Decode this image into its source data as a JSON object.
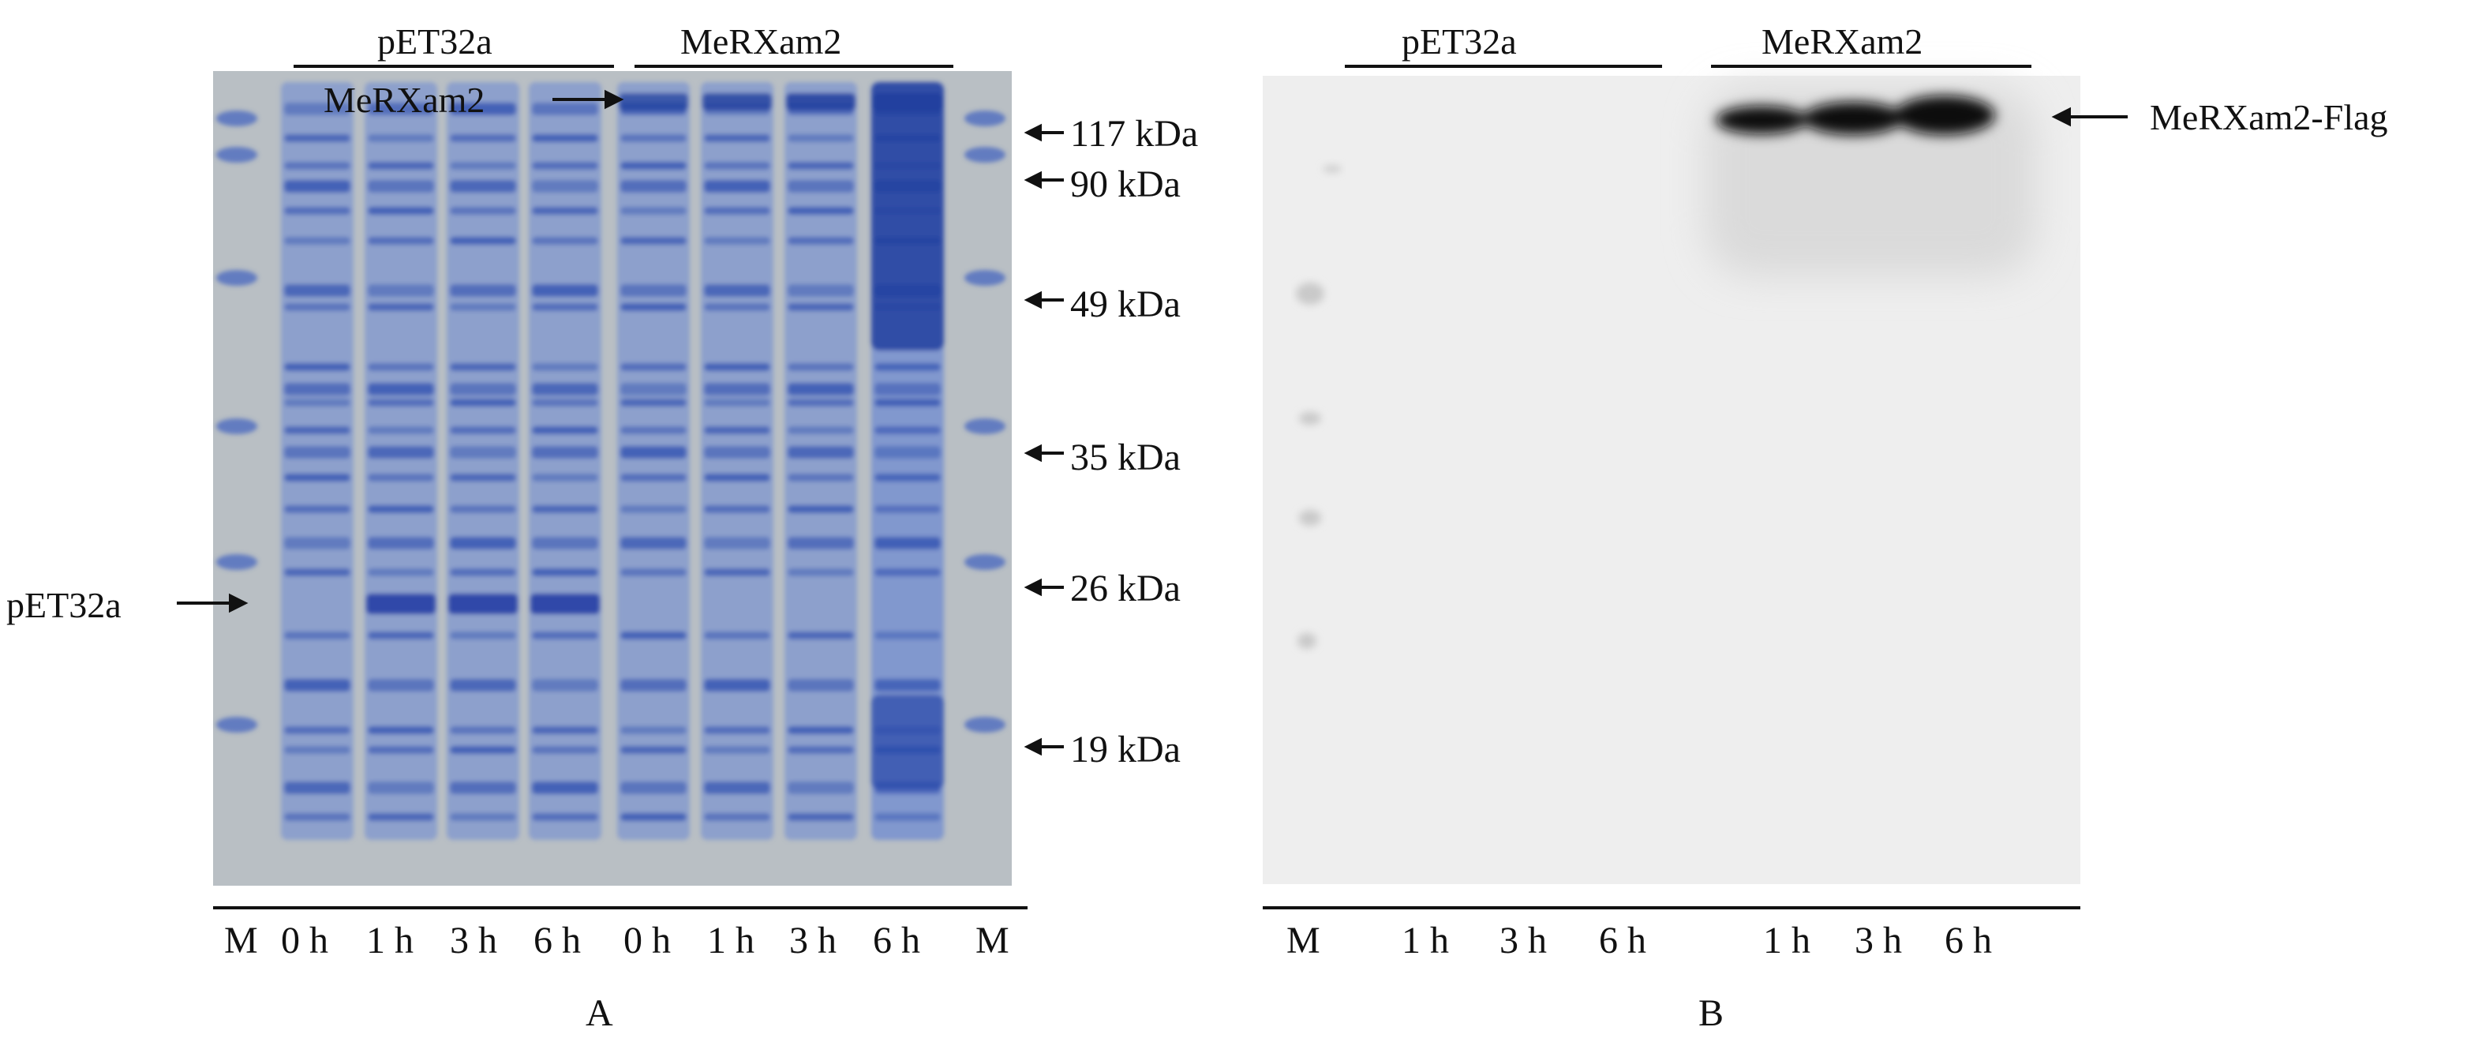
{
  "panel_a": {
    "label": "A",
    "group_labels": [
      "pET32a",
      "MeRXam2"
    ],
    "lane_labels": [
      "M",
      "0 h",
      "1 h",
      "3 h",
      "6 h",
      "0 h",
      "1 h",
      "3 h",
      "6 h",
      "M"
    ],
    "marker_labels": [
      "117 kDa",
      "90 kDa",
      "49 kDa",
      "35 kDa",
      "26 kDa",
      "19 kDa"
    ],
    "band_annotations": {
      "left": "pET32a",
      "top": "MeRXam2"
    },
    "colors": {
      "gel_background": "#b9bfc4",
      "band_stain": "#2f4fb0"
    }
  },
  "panel_b": {
    "label": "B",
    "group_labels": [
      "pET32a",
      "MeRXam2"
    ],
    "lane_labels": [
      "M",
      "1 h",
      "3 h",
      "6 h",
      "1 h",
      "3 h",
      "6 h"
    ],
    "band_annotation": "MeRXam2-Flag",
    "colors": {
      "membrane_background": "#eeeeee",
      "band_signal": "#111111"
    }
  }
}
